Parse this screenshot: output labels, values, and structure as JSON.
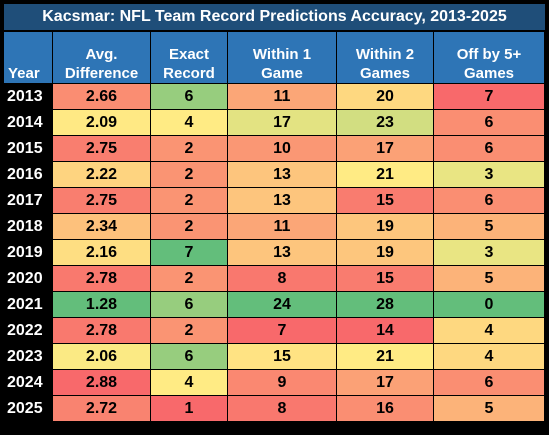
{
  "title": "Kacsmar: NFL Team Record Predictions Accuracy, 2013-2025",
  "headers": {
    "year": "Year",
    "avg_line1": "Avg.",
    "avg_line2": "Difference",
    "exact_line1": "Exact",
    "exact_line2": "Record",
    "within1_line1": "Within 1",
    "within1_line2": "Game",
    "within2_line1": "Within 2",
    "within2_line2": "Games",
    "off5_line1": "Off by 5+",
    "off5_line2": "Games"
  },
  "colors": {
    "title_bg": "#1f4e79",
    "header_bg": "#2e75b6",
    "scale_good": "#63be7b",
    "scale_mid": "#ffeb84",
    "scale_bad": "#f8696b"
  },
  "rows": [
    {
      "year": "2013",
      "avg": "2.66",
      "exact": "6",
      "within1": "11",
      "within2": "20",
      "off5": "7"
    },
    {
      "year": "2014",
      "avg": "2.09",
      "exact": "4",
      "within1": "17",
      "within2": "23",
      "off5": "6"
    },
    {
      "year": "2015",
      "avg": "2.75",
      "exact": "2",
      "within1": "10",
      "within2": "17",
      "off5": "6"
    },
    {
      "year": "2016",
      "avg": "2.22",
      "exact": "2",
      "within1": "13",
      "within2": "21",
      "off5": "3"
    },
    {
      "year": "2017",
      "avg": "2.75",
      "exact": "2",
      "within1": "13",
      "within2": "15",
      "off5": "6"
    },
    {
      "year": "2018",
      "avg": "2.34",
      "exact": "2",
      "within1": "11",
      "within2": "19",
      "off5": "5"
    },
    {
      "year": "2019",
      "avg": "2.16",
      "exact": "7",
      "within1": "13",
      "within2": "19",
      "off5": "3"
    },
    {
      "year": "2020",
      "avg": "2.78",
      "exact": "2",
      "within1": "8",
      "within2": "15",
      "off5": "5"
    },
    {
      "year": "2021",
      "avg": "1.28",
      "exact": "6",
      "within1": "24",
      "within2": "28",
      "off5": "0"
    },
    {
      "year": "2022",
      "avg": "2.78",
      "exact": "2",
      "within1": "7",
      "within2": "14",
      "off5": "4"
    },
    {
      "year": "2023",
      "avg": "2.06",
      "exact": "6",
      "within1": "15",
      "within2": "21",
      "off5": "4"
    },
    {
      "year": "2024",
      "avg": "2.88",
      "exact": "4",
      "within1": "9",
      "within2": "17",
      "off5": "6"
    },
    {
      "year": "2025",
      "avg": "2.72",
      "exact": "1",
      "within1": "8",
      "within2": "16",
      "off5": "5"
    }
  ]
}
